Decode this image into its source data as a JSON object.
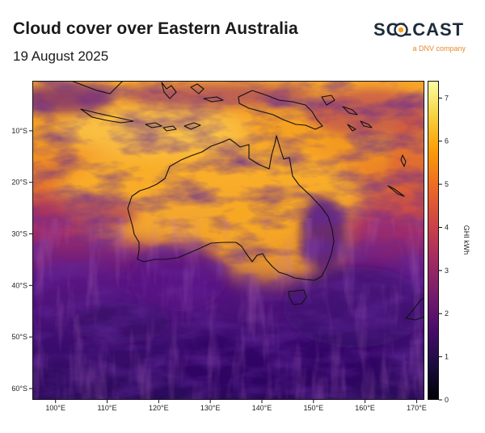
{
  "header": {
    "title": "Cloud cover over Eastern Australia",
    "date": "19 August 2025"
  },
  "logo": {
    "wordmark": "SOLCAST",
    "tagline": "a DNV company",
    "icon": "sun-ring-icon"
  },
  "chart_data": {
    "type": "heatmap",
    "title": "Cloud cover over Eastern Australia",
    "subtitle": "19 August 2025",
    "x_ticks": [
      "100°E",
      "110°E",
      "120°E",
      "130°E",
      "140°E",
      "150°E",
      "160°E",
      "170°E"
    ],
    "x_values": [
      100,
      110,
      120,
      130,
      140,
      150,
      160,
      170
    ],
    "y_ticks": [
      "10°S",
      "20°S",
      "30°S",
      "40°S",
      "50°S",
      "60°S"
    ],
    "y_values": [
      -10,
      -20,
      -30,
      -40,
      -50,
      -60
    ],
    "xlim": [
      95.5,
      171.5
    ],
    "ylim": [
      -62.2,
      -0.3
    ],
    "colorbar": {
      "label": "GHI kWh",
      "ticks": [
        "0",
        "1",
        "2",
        "3",
        "4",
        "5",
        "6",
        "7"
      ],
      "range": [
        0,
        7.4
      ],
      "colormap": "inferno",
      "stops": [
        "#000004",
        "#1b0c41",
        "#4a0c6b",
        "#781c6d",
        "#a52c60",
        "#cf4446",
        "#ed6925",
        "#fb9b06",
        "#f7d13d",
        "#fcffa4"
      ]
    }
  }
}
